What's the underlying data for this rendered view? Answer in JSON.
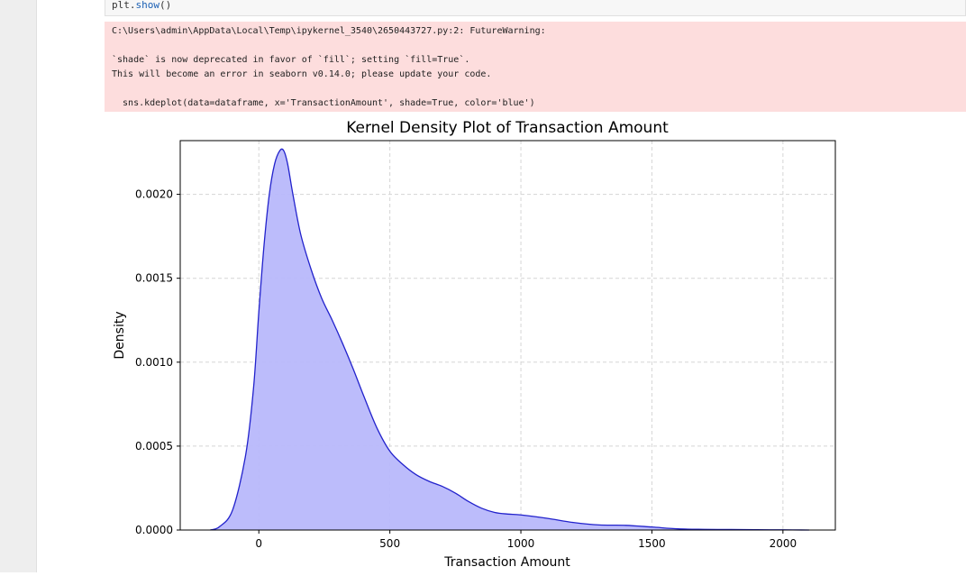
{
  "code": {
    "line_obj": "plt.",
    "line_fn": "show",
    "line_tail": "()"
  },
  "warning": {
    "line1": "C:\\Users\\admin\\AppData\\Local\\Temp\\ipykernel_3540\\2650443727.py:2: FutureWarning:",
    "line2": "`shade` is now deprecated in favor of `fill`; setting `fill=True`.",
    "line3": "This will become an error in seaborn v0.14.0; please update your code.",
    "line4": "  sns.kdeplot(data=dataframe, x='TransactionAmount', shade=True, color='blue')"
  },
  "colors": {
    "stderr_bg": "#fddddd",
    "line": "#2222cc",
    "fill": "#b8b8fb"
  },
  "chart_data": {
    "type": "area",
    "title": "Kernel Density Plot of Transaction Amount",
    "xlabel": "Transaction Amount",
    "ylabel": "Density",
    "xlim": [
      -300,
      2200
    ],
    "ylim": [
      0,
      0.00232
    ],
    "xticks": [
      0,
      500,
      1000,
      1500,
      2000
    ],
    "xtick_labels": [
      "0",
      "500",
      "1000",
      "1500",
      "2000"
    ],
    "yticks": [
      0,
      0.0005,
      0.001,
      0.0015,
      0.002
    ],
    "ytick_labels": [
      "0.0000",
      "0.0005",
      "0.0010",
      "0.0015",
      "0.0020"
    ],
    "grid": true,
    "x": [
      -185,
      -150,
      -100,
      -50,
      -20,
      0,
      20,
      40,
      60,
      80,
      95,
      110,
      130,
      160,
      200,
      240,
      280,
      320,
      360,
      400,
      450,
      500,
      550,
      600,
      650,
      700,
      750,
      800,
      850,
      900,
      950,
      1000,
      1100,
      1200,
      1300,
      1400,
      1500,
      1600,
      1700,
      1800,
      1900,
      2000,
      2100
    ],
    "y": [
      0,
      2e-05,
      0.00012,
      0.00045,
      0.00085,
      0.0013,
      0.0017,
      0.002,
      0.00218,
      0.00226,
      0.00226,
      0.00218,
      0.002,
      0.00176,
      0.00155,
      0.00138,
      0.00125,
      0.00111,
      0.00096,
      0.0008,
      0.00061,
      0.00047,
      0.00039,
      0.00033,
      0.00029,
      0.00026,
      0.00022,
      0.00017,
      0.00013,
      0.000105,
      9.5e-05,
      9e-05,
      7e-05,
      4.5e-05,
      3e-05,
      2.8e-05,
      1.8e-05,
      7e-06,
      4e-06,
      3e-06,
      2e-06,
      1e-06,
      0
    ]
  }
}
